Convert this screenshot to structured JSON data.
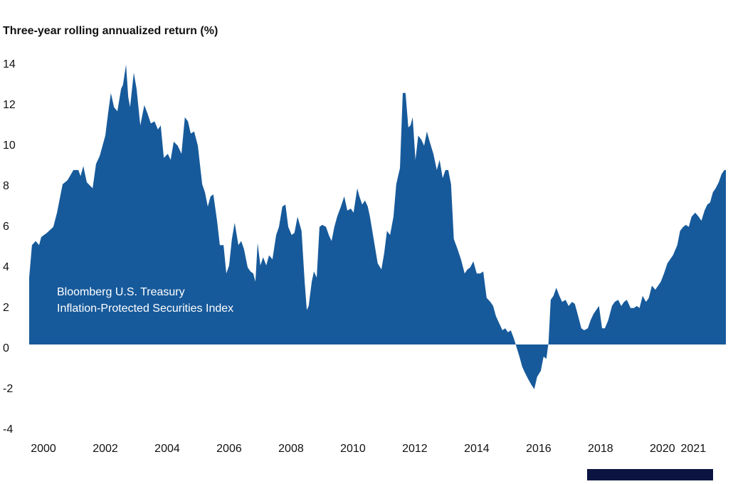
{
  "chart_data": {
    "type": "area",
    "title": "Three-year rolling annualized return (%)",
    "annotations": [
      "Bloomberg U.S. Treasury",
      "Inflation-Protected Securities Index"
    ],
    "color": "#175a9b",
    "xlim": [
      1999.54,
      2022.05
    ],
    "xticks": [
      2000,
      2002,
      2004,
      2006,
      2008,
      2010,
      2012,
      2014,
      2016,
      2018,
      2020,
      2021
    ],
    "ylim": [
      -4,
      14
    ],
    "yticks": [
      -4,
      -2,
      0,
      2,
      4,
      6,
      8,
      10,
      12,
      14
    ],
    "x": [
      1999.54,
      1999.63,
      1999.75,
      1999.86,
      1999.93,
      2000.11,
      2000.32,
      2000.44,
      2000.62,
      2000.78,
      2000.97,
      2001.13,
      2001.2,
      2001.29,
      2001.4,
      2001.59,
      2001.7,
      2001.82,
      2002.0,
      2002.09,
      2002.18,
      2002.28,
      2002.39,
      2002.51,
      2002.57,
      2002.67,
      2002.74,
      2002.8,
      2002.92,
      2003.01,
      2003.13,
      2003.26,
      2003.36,
      2003.47,
      2003.59,
      2003.7,
      2003.79,
      2003.89,
      2004.02,
      2004.11,
      2004.21,
      2004.34,
      2004.46,
      2004.57,
      2004.67,
      2004.76,
      2004.87,
      2004.99,
      2005.13,
      2005.22,
      2005.31,
      2005.4,
      2005.49,
      2005.61,
      2005.7,
      2005.82,
      2005.91,
      2006.0,
      2006.09,
      2006.18,
      2006.3,
      2006.39,
      2006.48,
      2006.6,
      2006.69,
      2006.78,
      2006.85,
      2006.92,
      2007.01,
      2007.1,
      2007.2,
      2007.29,
      2007.4,
      2007.52,
      2007.61,
      2007.72,
      2007.82,
      2007.91,
      2008.02,
      2008.11,
      2008.21,
      2008.34,
      2008.44,
      2008.51,
      2008.57,
      2008.67,
      2008.74,
      2008.83,
      2008.92,
      2009.01,
      2009.13,
      2009.22,
      2009.31,
      2009.4,
      2009.49,
      2009.61,
      2009.72,
      2009.82,
      2009.93,
      2010.02,
      2010.14,
      2010.21,
      2010.3,
      2010.39,
      2010.48,
      2010.55,
      2010.67,
      2010.8,
      2010.92,
      2011.01,
      2011.1,
      2011.2,
      2011.31,
      2011.4,
      2011.52,
      2011.61,
      2011.7,
      2011.79,
      2011.86,
      2011.93,
      2012.02,
      2012.11,
      2012.21,
      2012.3,
      2012.39,
      2012.48,
      2012.6,
      2012.71,
      2012.8,
      2012.9,
      2012.99,
      2013.08,
      2013.17,
      2013.26,
      2013.38,
      2013.49,
      2013.61,
      2013.7,
      2013.79,
      2013.89,
      2014.0,
      2014.11,
      2014.21,
      2014.32,
      2014.44,
      2014.53,
      2014.62,
      2014.71,
      2014.83,
      2014.92,
      2015.01,
      2015.1,
      2015.2,
      2015.26,
      2015.38,
      2015.47,
      2015.56,
      2015.66,
      2015.77,
      2015.86,
      2015.95,
      2016.07,
      2016.16,
      2016.25,
      2016.32,
      2016.39,
      2016.48,
      2016.57,
      2016.67,
      2016.76,
      2016.87,
      2016.97,
      2017.08,
      2017.17,
      2017.26,
      2017.38,
      2017.47,
      2017.59,
      2017.68,
      2017.77,
      2017.86,
      2017.95,
      2018.05,
      2018.14,
      2018.25,
      2018.37,
      2018.46,
      2018.57,
      2018.67,
      2018.76,
      2018.85,
      2018.97,
      2019.08,
      2019.17,
      2019.26,
      2019.36,
      2019.47,
      2019.56,
      2019.66,
      2019.77,
      2019.86,
      2019.95,
      2020.05,
      2020.16,
      2020.25,
      2020.34,
      2020.48,
      2020.57,
      2020.67,
      2020.76,
      2020.85,
      2020.94,
      2021.06,
      2021.17,
      2021.26,
      2021.36,
      2021.45,
      2021.54,
      2021.63,
      2021.72,
      2021.82,
      2021.91,
      2022.0,
      2022.05
    ],
    "values": [
      3.3,
      4.9,
      5.1,
      4.9,
      5.3,
      5.5,
      5.8,
      6.5,
      7.9,
      8.1,
      8.6,
      8.6,
      8.3,
      8.8,
      8.0,
      7.7,
      8.9,
      9.3,
      10.3,
      11.4,
      12.4,
      11.7,
      11.5,
      12.6,
      12.8,
      13.8,
      12.2,
      11.7,
      13.4,
      12.6,
      10.8,
      11.8,
      11.4,
      10.9,
      11.0,
      10.6,
      10.8,
      9.2,
      9.4,
      9.1,
      10.0,
      9.8,
      9.4,
      11.2,
      11.0,
      10.4,
      10.5,
      9.8,
      7.9,
      7.5,
      6.8,
      7.3,
      7.4,
      6.1,
      4.9,
      4.9,
      3.5,
      3.9,
      5.2,
      6.0,
      4.9,
      5.1,
      4.7,
      3.8,
      3.6,
      3.5,
      3.1,
      5.0,
      3.9,
      4.3,
      3.9,
      4.4,
      4.2,
      5.4,
      5.8,
      6.8,
      6.9,
      5.8,
      5.4,
      5.5,
      6.3,
      5.6,
      3.1,
      1.7,
      1.9,
      3.1,
      3.6,
      3.3,
      5.8,
      5.9,
      5.8,
      5.4,
      5.1,
      5.8,
      6.3,
      6.8,
      7.3,
      6.6,
      6.7,
      6.5,
      7.7,
      7.3,
      6.9,
      7.1,
      6.8,
      6.3,
      5.2,
      4.0,
      3.7,
      4.5,
      5.6,
      5.4,
      6.3,
      7.9,
      8.7,
      12.4,
      12.4,
      10.7,
      10.8,
      11.2,
      9.1,
      10.3,
      10.1,
      9.8,
      10.5,
      10.0,
      9.4,
      8.6,
      9.1,
      8.2,
      8.6,
      8.6,
      7.9,
      5.2,
      4.7,
      4.2,
      3.5,
      3.7,
      3.8,
      4.1,
      3.5,
      3.5,
      3.6,
      2.3,
      2.1,
      1.9,
      1.4,
      1.1,
      0.7,
      0.8,
      0.6,
      0.7,
      0.3,
      0.0,
      -0.6,
      -1.1,
      -1.4,
      -1.7,
      -2.0,
      -2.2,
      -1.6,
      -1.3,
      -0.6,
      -0.7,
      0.1,
      2.2,
      2.4,
      2.8,
      2.4,
      2.1,
      2.2,
      1.9,
      2.1,
      2.0,
      1.5,
      0.8,
      0.7,
      0.8,
      1.2,
      1.5,
      1.7,
      1.9,
      0.8,
      0.8,
      1.2,
      1.9,
      2.1,
      2.2,
      1.9,
      2.1,
      2.2,
      1.8,
      1.8,
      1.9,
      1.8,
      2.4,
      2.1,
      2.3,
      2.9,
      2.7,
      2.9,
      3.1,
      3.5,
      4.0,
      4.2,
      4.4,
      4.9,
      5.6,
      5.8,
      5.9,
      5.8,
      6.3,
      6.5,
      6.3,
      6.1,
      6.6,
      6.9,
      7.0,
      7.5,
      7.7,
      8.0,
      8.4,
      8.6,
      8.6
    ]
  }
}
